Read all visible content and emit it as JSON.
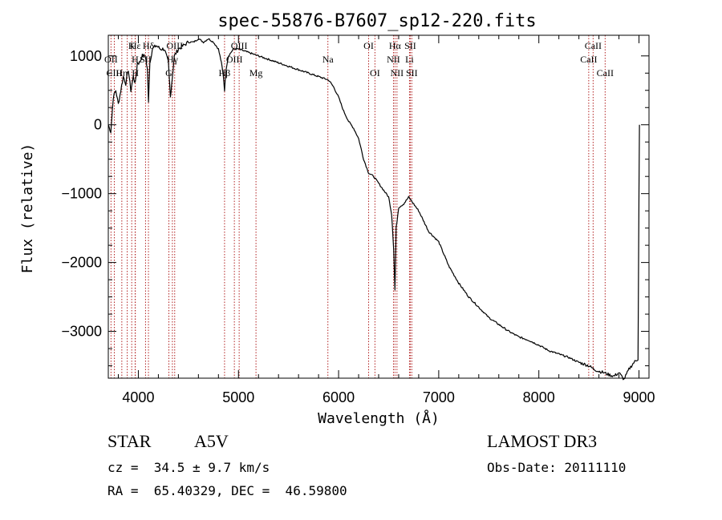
{
  "chart_data": {
    "type": "line",
    "title": "spec-55876-B7607_sp12-220.fits",
    "xlabel": "Wavelength (Å)",
    "ylabel": "Flux (relative)",
    "xlim": [
      3700,
      9100
    ],
    "ylim": [
      -3680,
      1300
    ],
    "xticks": [
      4000,
      5000,
      6000,
      7000,
      8000,
      9000
    ],
    "yticks": [
      -3000,
      -2000,
      -1000,
      0,
      1000
    ],
    "series": [
      {
        "name": "spectrum",
        "x": [
          3700,
          3725,
          3750,
          3775,
          3800,
          3825,
          3850,
          3875,
          3900,
          3925,
          3950,
          3970,
          3990,
          4010,
          4040,
          4070,
          4090,
          4101,
          4115,
          4140,
          4180,
          4220,
          4260,
          4300,
          4320,
          4340,
          4360,
          4400,
          4450,
          4500,
          4550,
          4600,
          4650,
          4700,
          4750,
          4800,
          4830,
          4850,
          4861,
          4875,
          4900,
          4950,
          5000,
          5100,
          5200,
          5300,
          5400,
          5500,
          5600,
          5700,
          5800,
          5900,
          5950,
          6000,
          6050,
          6100,
          6150,
          6200,
          6250,
          6300,
          6350,
          6400,
          6450,
          6500,
          6530,
          6550,
          6563,
          6575,
          6600,
          6650,
          6700,
          6750,
          6800,
          6900,
          7000,
          7100,
          7200,
          7300,
          7400,
          7500,
          7600,
          7700,
          7800,
          7900,
          8000,
          8100,
          8200,
          8300,
          8400,
          8500,
          8550,
          8600,
          8650,
          8700,
          8750,
          8800,
          8850,
          8900,
          8950,
          8990,
          9000,
          9005
        ],
        "values": [
          0,
          -100,
          400,
          500,
          300,
          500,
          700,
          600,
          800,
          500,
          700,
          600,
          900,
          900,
          1000,
          1000,
          800,
          350,
          900,
          1100,
          1150,
          1100,
          1100,
          900,
          400,
          700,
          1000,
          1100,
          1150,
          1200,
          1200,
          1250,
          1200,
          1250,
          1200,
          1100,
          900,
          700,
          500,
          800,
          1000,
          1100,
          1100,
          1050,
          1000,
          950,
          900,
          850,
          800,
          750,
          700,
          650,
          550,
          400,
          200,
          50,
          -50,
          -200,
          -500,
          -700,
          -750,
          -850,
          -950,
          -1050,
          -1300,
          -1800,
          -2400,
          -1500,
          -1200,
          -1150,
          -1050,
          -1150,
          -1250,
          -1550,
          -1700,
          -2050,
          -2300,
          -2500,
          -2650,
          -2800,
          -2900,
          -3000,
          -3080,
          -3130,
          -3200,
          -3280,
          -3330,
          -3380,
          -3450,
          -3500,
          -3550,
          -3580,
          -3600,
          -3630,
          -3650,
          -3600,
          -3700,
          -3550,
          -3450,
          -3400,
          -1000,
          0
        ]
      }
    ],
    "line_marks": [
      {
        "label": "Hδ",
        "wave": 4101,
        "row": 1
      },
      {
        "label": "OII",
        "wave": 3727,
        "row": 2
      },
      {
        "label": "CIII",
        "wave": 3760,
        "row": 3
      },
      {
        "label": "Hε",
        "wave": 3970,
        "row": 1
      },
      {
        "label": "K",
        "wave": 3934,
        "row": 1
      },
      {
        "label": "H",
        "wave": 3968,
        "row": 2
      },
      {
        "label": "Hη",
        "wave": 3835,
        "row": 3
      },
      {
        "label": "SII",
        "wave": 4072,
        "row": 2
      },
      {
        "label": "H",
        "wave": 3970,
        "row": 3
      },
      {
        "label": "Hγ",
        "wave": 4340,
        "row": 2
      },
      {
        "label": "G",
        "wave": 4305,
        "row": 3
      },
      {
        "label": "OIII",
        "wave": 4363,
        "row": 1
      },
      {
        "label": "OIII",
        "wave": 5007,
        "row": 1
      },
      {
        "label": "OIII",
        "wave": 4959,
        "row": 2
      },
      {
        "label": "Hβ",
        "wave": 4861,
        "row": 3
      },
      {
        "label": "Mg",
        "wave": 5175,
        "row": 3
      },
      {
        "label": "Na",
        "wave": 5893,
        "row": 2
      },
      {
        "label": "OI",
        "wave": 6300,
        "row": 1
      },
      {
        "label": "OI",
        "wave": 6363,
        "row": 3
      },
      {
        "label": "Hα",
        "wave": 6563,
        "row": 1
      },
      {
        "label": "SII",
        "wave": 6716,
        "row": 1
      },
      {
        "label": "NII",
        "wave": 6548,
        "row": 2
      },
      {
        "label": "Li",
        "wave": 6708,
        "row": 2
      },
      {
        "label": "NII",
        "wave": 6583,
        "row": 3
      },
      {
        "label": "SII",
        "wave": 6731,
        "row": 3
      },
      {
        "label": "CaII",
        "wave": 8542,
        "row": 1
      },
      {
        "label": "CaII",
        "wave": 8498,
        "row": 2
      },
      {
        "label": "CaII",
        "wave": 8662,
        "row": 3
      }
    ],
    "vlines": [
      3727,
      3760,
      3835,
      3889,
      3934,
      3968,
      3970,
      4072,
      4101,
      4305,
      4340,
      4363,
      4861,
      4959,
      5007,
      5175,
      5893,
      6300,
      6363,
      6548,
      6563,
      6583,
      6708,
      6716,
      6731,
      8498,
      8542,
      8662
    ],
    "colors": {
      "vline": "#b22222",
      "spectrum": "#000000"
    }
  },
  "info": {
    "class": "STAR",
    "subclass": "A5V",
    "survey": "LAMOST DR3",
    "cz": "cz =  34.5 ± 9.7 km/s",
    "obsdate": "Obs-Date: 20111110",
    "radec": "RA =  65.40329, DEC =  46.59800"
  }
}
